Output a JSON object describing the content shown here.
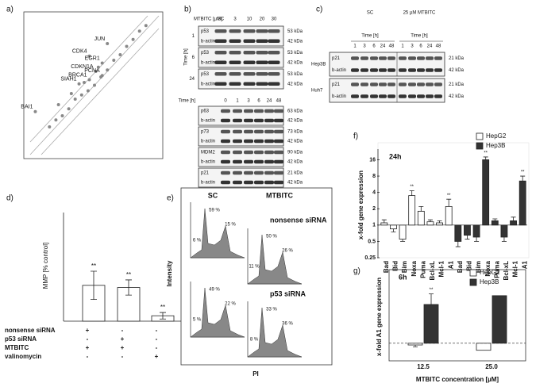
{
  "panel_labels": [
    "a)",
    "b)",
    "c)",
    "d)",
    "e)",
    "f)",
    "g)"
  ],
  "blot_b_top": {
    "header": "MTBITC [µM]",
    "lanes": [
      "SC",
      "3",
      "10",
      "20",
      "30"
    ],
    "group_axis": "Time [h]",
    "groups": [
      {
        "label": "1",
        "rows": [
          {
            "protein": "p53",
            "size": "53 kDa"
          },
          {
            "protein": "b-actin",
            "size": "42 kDa"
          }
        ]
      },
      {
        "label": "6",
        "rows": [
          {
            "protein": "p53",
            "size": "53 kDa"
          },
          {
            "protein": "b-actin",
            "size": "42 kDa"
          }
        ]
      },
      {
        "label": "24",
        "rows": [
          {
            "protein": "p53",
            "size": "53 kDa"
          },
          {
            "protein": "b-actin",
            "size": "42 kDa"
          }
        ]
      }
    ]
  },
  "blot_b_bottom": {
    "header": "Time [h]",
    "lanes": [
      "0",
      "1",
      "3",
      "6",
      "24",
      "48"
    ],
    "groups": [
      {
        "rows": [
          {
            "protein": "p63",
            "size": "63 kDa"
          },
          {
            "protein": "b-actin",
            "size": "42 kDa"
          }
        ]
      },
      {
        "rows": [
          {
            "protein": "p73",
            "size": "73 kDa"
          },
          {
            "protein": "b-actin",
            "size": "42 kDa"
          }
        ]
      },
      {
        "rows": [
          {
            "protein": "MDM2",
            "size": "90 kDa"
          },
          {
            "protein": "b-actin",
            "size": "42 kDa"
          }
        ]
      },
      {
        "rows": [
          {
            "protein": "p21",
            "size": "21 kDa"
          },
          {
            "protein": "b-actin",
            "size": "42 kDa"
          }
        ]
      }
    ]
  },
  "blot_c": {
    "conditions": [
      "SC",
      "25 µM MTBITC"
    ],
    "time_label": "Time [h]",
    "lanes": [
      "1",
      "3",
      "6",
      "24",
      "48",
      "1",
      "3",
      "6",
      "24",
      "48"
    ],
    "groups": [
      {
        "label": "Hep3B",
        "rows": [
          {
            "protein": "p21",
            "size": "21 kDa"
          },
          {
            "protein": "b-actin",
            "size": "42 kDa"
          }
        ]
      },
      {
        "label": "Huh7",
        "rows": [
          {
            "protein": "p21",
            "size": "21 kDa"
          },
          {
            "protein": "b-actin",
            "size": "42 kDa"
          }
        ]
      }
    ]
  },
  "table_d": {
    "rows": [
      {
        "label": "nonsense siRNA",
        "cells": [
          "+",
          "-",
          "-"
        ]
      },
      {
        "label": "p53 siRNA",
        "cells": [
          "-",
          "+",
          "-"
        ]
      },
      {
        "label": "MTBITC",
        "cells": [
          "+",
          "+",
          "-"
        ]
      },
      {
        "label": "valinomycin",
        "cells": [
          "-",
          "-",
          "+"
        ]
      }
    ]
  },
  "flow_e": {
    "columns": [
      "SC",
      "MTBITC"
    ],
    "rows": [
      "nonsense siRNA",
      "p53 siRNA"
    ],
    "y_label": "Intensity",
    "x_label": "PI",
    "panels": [
      [
        "6 %",
        "59 %",
        "15 %"
      ],
      [
        "11 %",
        "50 %",
        "26 %"
      ],
      [
        "5 %",
        "49 %",
        "22 %"
      ],
      [
        "8 %",
        "33 %",
        "36 %"
      ]
    ]
  },
  "chart_data": [
    {
      "type": "scatter",
      "color": "#888888",
      "xlim": [
        0,
        10
      ],
      "ylim": [
        0,
        10
      ],
      "x": [
        6.0,
        4.6,
        5.6,
        5.1,
        3.8,
        4.6,
        5.6,
        0.4,
        2.0,
        2.5,
        3.0,
        3.5,
        4.0,
        4.5,
        5.0,
        5.5,
        6.0,
        6.5,
        7.0,
        7.5,
        8.0,
        8.5,
        3.2,
        4.2,
        5.3,
        1.5,
        9.0,
        2.2
      ],
      "y": [
        8.0,
        7.1,
        6.6,
        6.0,
        5.1,
        5.4,
        5.7,
        3.1,
        2.5,
        2.8,
        3.3,
        4.0,
        4.3,
        4.6,
        5.0,
        5.6,
        6.1,
        6.8,
        7.2,
        7.8,
        8.3,
        8.9,
        4.4,
        5.2,
        6.3,
        2.0,
        9.3,
        3.6
      ],
      "point_labels": [
        "JUN",
        "CDK4",
        "EGR1",
        "CDKN1A",
        "SIAH1",
        "BRCA1",
        "PCNA",
        "BAI1",
        null,
        null,
        null,
        null,
        null,
        null,
        null,
        null,
        null,
        null,
        null,
        null,
        null,
        null,
        null,
        null,
        null,
        null,
        null,
        null
      ]
    },
    {
      "type": "bar",
      "y_label": "MMP [% control]",
      "color": "#ffffff",
      "ylim": [
        0,
        100
      ],
      "values": [
        33,
        31,
        5
      ],
      "errors": [
        13,
        7,
        3
      ],
      "significance": [
        "**",
        "**",
        "**"
      ]
    },
    {
      "type": "bar",
      "title": "24h",
      "y_label": "x-fold gene expression",
      "log_scale": true,
      "bar_base": 1,
      "ylim": [
        0.25,
        22
      ],
      "yticks": [
        0.25,
        0.5,
        1,
        2,
        4,
        8,
        16
      ],
      "categories": [
        "Bad",
        "Bid",
        "Bim",
        "Noxa",
        "Puma",
        "Bcl-xL",
        "Mcl-1",
        "A1",
        "Bad",
        "Bid",
        "Bim",
        "Noxa",
        "Puma",
        "Bcl-xL",
        "Mcl-1",
        "A1"
      ],
      "series": [
        {
          "name": "HepG2",
          "color": "#ffffff",
          "values": [
            1.1,
            0.85,
            0.55,
            3.5,
            1.8,
            1.15,
            1.1,
            2.2,
            null,
            null,
            null,
            null,
            null,
            null,
            null,
            null
          ],
          "errors": [
            0.15,
            0.1,
            0.05,
            0.8,
            0.4,
            0.1,
            0.1,
            0.8,
            null,
            null,
            null,
            null,
            null,
            null,
            null,
            null
          ],
          "significance": [
            null,
            null,
            null,
            "**",
            null,
            null,
            null,
            "**",
            null,
            null,
            null,
            null,
            null,
            null,
            null,
            null
          ]
        },
        {
          "name": "Hep3B",
          "color": "#333333",
          "values": [
            null,
            null,
            null,
            null,
            null,
            null,
            null,
            null,
            0.5,
            0.65,
            0.6,
            16,
            1.2,
            0.6,
            1.2,
            6.5
          ],
          "errors": [
            null,
            null,
            null,
            null,
            null,
            null,
            null,
            null,
            0.1,
            0.1,
            0.1,
            2,
            0.1,
            0.1,
            0.2,
            1.5
          ],
          "significance": [
            null,
            null,
            null,
            null,
            null,
            null,
            null,
            null,
            null,
            null,
            null,
            "**",
            null,
            null,
            null,
            "**"
          ]
        }
      ]
    },
    {
      "type": "bar",
      "title": "6h",
      "y_label": "x-fold A1 gene expression",
      "x_label": "MTBITC concentration [µM]",
      "bar_base": 1,
      "ylim": [
        0,
        5
      ],
      "categories": [
        "12.5",
        "25.0"
      ],
      "series": [
        {
          "name": "HepG2",
          "color": "#ffffff",
          "values": [
            0.9,
            0.6
          ],
          "errors": [
            0.1,
            null
          ]
        },
        {
          "name": "Hep3B",
          "color": "#333333",
          "values": [
            3.2,
            3.7
          ],
          "errors": [
            0.6,
            null
          ],
          "significance": [
            "**",
            null
          ]
        }
      ]
    }
  ]
}
